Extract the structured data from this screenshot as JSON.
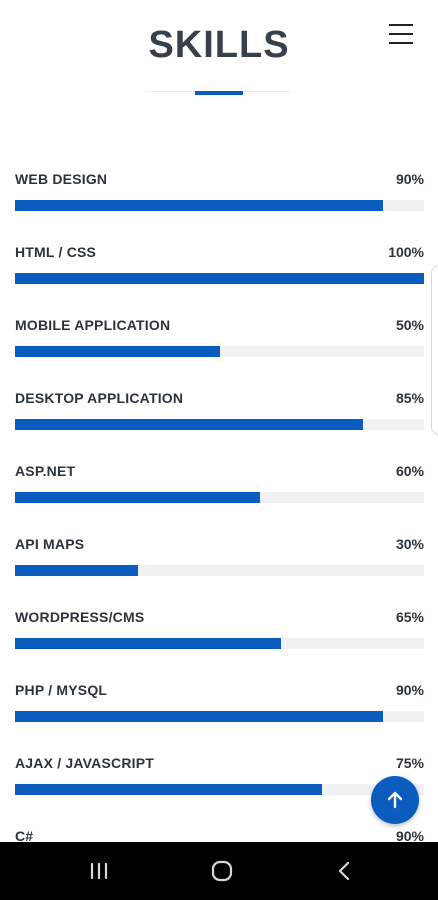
{
  "header": {
    "title": "SKILLS",
    "menu_icon": "hamburger-menu-icon"
  },
  "skills": [
    {
      "name": "WEB DESIGN",
      "percent_label": "90%",
      "value": 90
    },
    {
      "name": "HTML / CSS",
      "percent_label": "100%",
      "value": 100
    },
    {
      "name": "MOBILE APPLICATION",
      "percent_label": "50%",
      "value": 50
    },
    {
      "name": "DESKTOP APPLICATION",
      "percent_label": "85%",
      "value": 85
    },
    {
      "name": "ASP.NET",
      "percent_label": "60%",
      "value": 60
    },
    {
      "name": "API MAPS",
      "percent_label": "30%",
      "value": 30
    },
    {
      "name": "WORDPRESS/CMS",
      "percent_label": "65%",
      "value": 65
    },
    {
      "name": "PHP / MYSQL",
      "percent_label": "90%",
      "value": 90
    },
    {
      "name": "AJAX / JAVASCRIPT",
      "percent_label": "75%",
      "value": 75
    },
    {
      "name": "C#",
      "percent_label": "90%",
      "value": 90
    }
  ],
  "fab": {
    "icon": "arrow-up-icon"
  },
  "nav_bar": {
    "icons": [
      "recent-apps-icon",
      "home-icon",
      "back-icon"
    ]
  },
  "colors": {
    "accent": "#0b5cbf",
    "track": "#f0f1f3",
    "title": "#37404b",
    "nav_bar": "#000000"
  }
}
